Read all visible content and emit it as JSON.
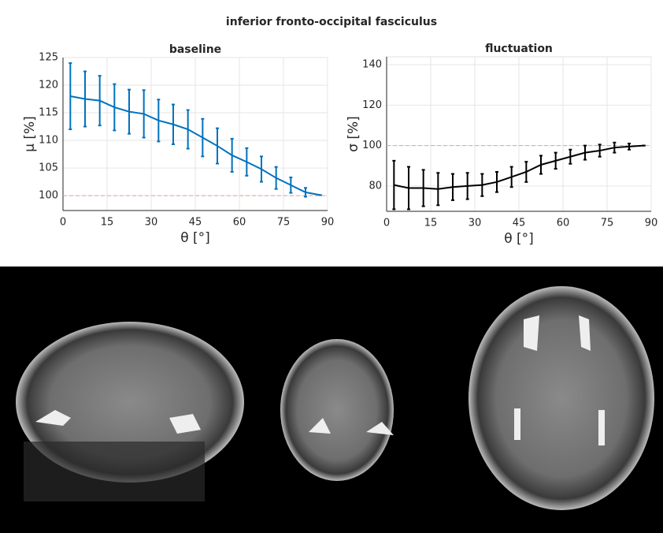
{
  "title": "inferior fronto-occipital fasciculus",
  "chart_data": [
    {
      "type": "line",
      "title": "baseline",
      "xlabel": "θ [°]",
      "ylabel": "μ [%]",
      "x": [
        2.5,
        7.5,
        12.5,
        17.5,
        22.5,
        27.5,
        32.5,
        37.5,
        42.5,
        47.5,
        52.5,
        57.5,
        62.5,
        67.5,
        72.5,
        77.5,
        82.5,
        87.5
      ],
      "values": [
        118,
        117.5,
        117.2,
        116,
        115.2,
        114.8,
        113.6,
        112.9,
        112,
        110.5,
        109,
        107.3,
        106.1,
        104.8,
        103.2,
        101.9,
        100.6,
        100.1
      ],
      "errors": [
        6,
        5,
        4.5,
        4.2,
        4,
        4.3,
        3.8,
        3.6,
        3.5,
        3.4,
        3.2,
        3,
        2.5,
        2.3,
        2,
        1.4,
        0.8,
        0
      ],
      "color": "#0072bd",
      "reference_line": 100,
      "reference_color": "#e8a0a0",
      "xlim": [
        0,
        90
      ],
      "xticks": [
        0,
        15,
        30,
        45,
        60,
        75,
        90
      ],
      "ylim": [
        97.3,
        125
      ],
      "yticks": [
        100,
        105,
        110,
        115,
        120,
        125
      ],
      "grid": true
    },
    {
      "type": "line",
      "title": "fluctuation",
      "xlabel": "θ [°]",
      "ylabel": "σ [%]",
      "x": [
        2.5,
        7.5,
        12.5,
        17.5,
        22.5,
        27.5,
        32.5,
        37.5,
        42.5,
        47.5,
        52.5,
        57.5,
        62.5,
        67.5,
        72.5,
        77.5,
        82.5,
        87.5
      ],
      "values": [
        80.5,
        79,
        79,
        78.5,
        79.5,
        80,
        80.5,
        82,
        84.5,
        87,
        90.5,
        92.5,
        94.5,
        96.5,
        97.5,
        99,
        99.5,
        100
      ],
      "errors": [
        12,
        10.5,
        9,
        8,
        6.5,
        6.5,
        5.5,
        5,
        5,
        5,
        4.5,
        4,
        3.5,
        3.5,
        3,
        2.5,
        1.5,
        0
      ],
      "color": "#000000",
      "reference_line": 100,
      "reference_color": "#e8a0a0",
      "xlim": [
        0,
        90
      ],
      "xticks": [
        0,
        15,
        30,
        45,
        60,
        75,
        90
      ],
      "ylim": [
        67.5,
        143.9
      ],
      "yticks": [
        80,
        100,
        120,
        140
      ],
      "grid": true
    }
  ]
}
